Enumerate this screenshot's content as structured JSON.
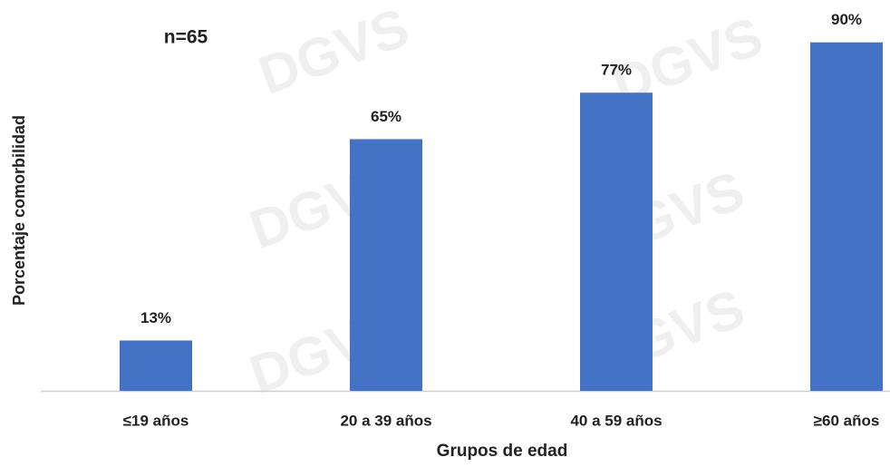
{
  "chart_data": {
    "type": "bar",
    "annotation": "n=65",
    "watermark": "DGVS",
    "x_label": "Grupos de edad",
    "y_label": "Porcentaje comorbilidad",
    "categories": [
      "≤19 años",
      "20 a 39 años",
      "40 a 59 años",
      "≥60 años"
    ],
    "values": [
      13,
      65,
      77,
      90
    ],
    "value_labels": [
      "13%",
      "65%",
      "77%",
      "90%"
    ],
    "color": "#4472c4"
  }
}
